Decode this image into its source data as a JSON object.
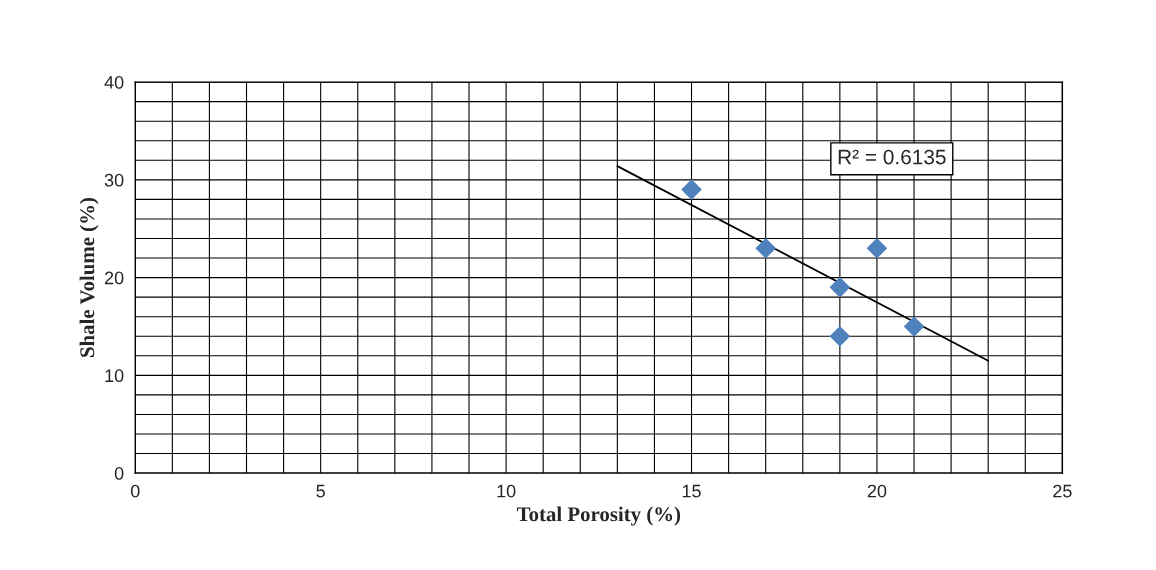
{
  "chart_data": {
    "type": "scatter",
    "xlabel": "Total Porosity (%)",
    "ylabel": "Shale Volume (%)",
    "x": [
      15,
      17,
      19,
      19,
      20,
      21
    ],
    "series": [
      {
        "color": "#4f81bd",
        "marker": "diamond",
        "values": [
          29,
          23,
          19,
          14,
          23,
          15
        ]
      },
      {
        "type": "line",
        "color": "#000000",
        "marker": "none",
        "line_style": "solid",
        "x": [
          13,
          23
        ],
        "values": [
          31.4,
          11.5
        ]
      }
    ],
    "annotations": [
      "R² = 0.6135"
    ],
    "xlim": [
      0,
      25
    ],
    "xticks": [
      0,
      5,
      10,
      15,
      20,
      25
    ],
    "ylim": [
      0,
      40
    ],
    "yticks": [
      0,
      10,
      20,
      30,
      40
    ],
    "grid": true,
    "legend": false
  }
}
